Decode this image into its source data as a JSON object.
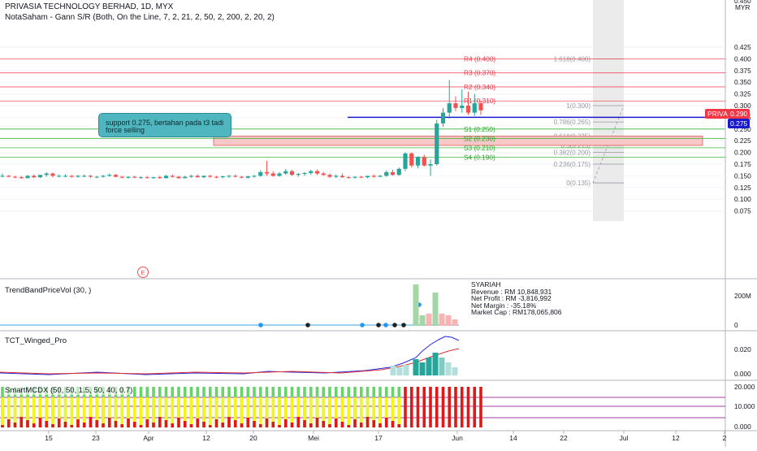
{
  "header": {
    "symbol_line": "PRIVASIA TECHNOLOGY BERHAD, 1D, MYX",
    "indicator_line": "NotaSaham - Gann S/R (Both, On the Line, 7, 2, 21, 2, 50, 2, 200, 2, 20, 2)",
    "currency": "MYR",
    "top_price_partial": "0.450"
  },
  "note": {
    "text": "support 0.275, bertahan pada t3 tadi force selling"
  },
  "price_axis": {
    "ticks": [
      "0.425",
      "0.400",
      "0.375",
      "0.350",
      "0.325",
      "0.300",
      "0.275",
      "0.250",
      "0.225",
      "0.200",
      "0.175",
      "0.150",
      "0.125",
      "0.100",
      "0.075"
    ],
    "last_tag": {
      "label": "PRIVA",
      "value": "0.290",
      "color": "#f23645"
    },
    "line_tag": {
      "value": "0.275",
      "color": "#1a1acc"
    }
  },
  "time_axis": {
    "labels": [
      "15",
      "23",
      "Apr",
      "12",
      "20",
      "Mei",
      "17",
      "Jun",
      "14",
      "22",
      "Jul",
      "12",
      "2"
    ]
  },
  "sr_levels": [
    {
      "label": "R4 (0.400)",
      "price": 0.4,
      "color": "#f23645"
    },
    {
      "label": "R3 (0.370)",
      "price": 0.37,
      "color": "#f23645"
    },
    {
      "label": "R2 (0.340)",
      "price": 0.34,
      "color": "#f23645"
    },
    {
      "label": "R1 (0.310)",
      "price": 0.31,
      "color": "#f23645"
    },
    {
      "label": "S1 (0.250)",
      "price": 0.25,
      "color": "#22ab22"
    },
    {
      "label": "S2 (0.230)",
      "price": 0.23,
      "color": "#22ab22"
    },
    {
      "label": "S3 (0.210)",
      "price": 0.21,
      "color": "#22ab22"
    },
    {
      "label": "S4 (0.190)",
      "price": 0.19,
      "color": "#22ab22"
    }
  ],
  "fib_levels": [
    {
      "label": "1.618(0.400)",
      "price": 0.4
    },
    {
      "label": "1(0.300)",
      "price": 0.3
    },
    {
      "label": "0.786(0.265)",
      "price": 0.265
    },
    {
      "label": "0.618(0.235)",
      "price": 0.235
    },
    {
      "label": "0.5(0.215)",
      "price": 0.215
    },
    {
      "label": "0.382(0.200)",
      "price": 0.2
    },
    {
      "label": "0.236(0.175)",
      "price": 0.175
    },
    {
      "label": "0(0.135)",
      "price": 0.135
    }
  ],
  "earnings_marker": "E",
  "indicators": {
    "trendband": {
      "label": "TrendBandPriceVol (30, )",
      "axis": [
        "200M",
        "0"
      ],
      "info_lines": [
        "SYARIAH",
        "Revenue : RM 10,848,931",
        "Net Profit : RM -3,816,992",
        "Net Margin : -35.18%",
        "Market Cap : RM178,065,806"
      ]
    },
    "winged": {
      "label": "TCT_Winged_Pro",
      "axis": [
        "0.020",
        "0.000"
      ]
    },
    "smartmcdx": {
      "label": "SmartMCDX (50, 50, 1.5, 50, 40, 0.7)",
      "axis": [
        "20.000",
        "10.000",
        "0.000"
      ]
    }
  },
  "colors": {
    "up": "#26a69a",
    "down": "#ef5350",
    "support_line": "#1a1acc",
    "zone_fill": "#f8c8c8"
  },
  "chart_data": {
    "type": "candlestick",
    "currency": "MYR",
    "y_range": [
      0.06,
      0.46
    ],
    "series_note": "daily OHLC (approx.)",
    "candles": [
      [
        0.15,
        0.155,
        0.147,
        0.15
      ],
      [
        0.15,
        0.152,
        0.147,
        0.148
      ],
      [
        0.148,
        0.15,
        0.145,
        0.147
      ],
      [
        0.147,
        0.15,
        0.144,
        0.145
      ],
      [
        0.145,
        0.152,
        0.145,
        0.15
      ],
      [
        0.15,
        0.153,
        0.145,
        0.147
      ],
      [
        0.147,
        0.152,
        0.145,
        0.152
      ],
      [
        0.152,
        0.158,
        0.148,
        0.155
      ],
      [
        0.155,
        0.157,
        0.147,
        0.15
      ],
      [
        0.15,
        0.153,
        0.147,
        0.15
      ],
      [
        0.15,
        0.153,
        0.147,
        0.15
      ],
      [
        0.15,
        0.152,
        0.146,
        0.148
      ],
      [
        0.148,
        0.152,
        0.146,
        0.15
      ],
      [
        0.15,
        0.153,
        0.147,
        0.15
      ],
      [
        0.15,
        0.152,
        0.146,
        0.148
      ],
      [
        0.148,
        0.15,
        0.145,
        0.148
      ],
      [
        0.148,
        0.152,
        0.146,
        0.15
      ],
      [
        0.15,
        0.155,
        0.148,
        0.152
      ],
      [
        0.152,
        0.154,
        0.147,
        0.148
      ],
      [
        0.148,
        0.15,
        0.145,
        0.146
      ],
      [
        0.146,
        0.149,
        0.144,
        0.148
      ],
      [
        0.148,
        0.15,
        0.145,
        0.146
      ],
      [
        0.146,
        0.149,
        0.144,
        0.147
      ],
      [
        0.147,
        0.15,
        0.145,
        0.145
      ],
      [
        0.145,
        0.148,
        0.144,
        0.147
      ],
      [
        0.147,
        0.15,
        0.144,
        0.145
      ],
      [
        0.145,
        0.152,
        0.145,
        0.15
      ],
      [
        0.15,
        0.153,
        0.146,
        0.148
      ],
      [
        0.148,
        0.15,
        0.144,
        0.145
      ],
      [
        0.145,
        0.15,
        0.145,
        0.148
      ],
      [
        0.148,
        0.152,
        0.146,
        0.15
      ],
      [
        0.15,
        0.153,
        0.146,
        0.147
      ],
      [
        0.147,
        0.151,
        0.145,
        0.15
      ],
      [
        0.15,
        0.152,
        0.146,
        0.148
      ],
      [
        0.148,
        0.15,
        0.145,
        0.147
      ],
      [
        0.147,
        0.15,
        0.145,
        0.149
      ],
      [
        0.149,
        0.152,
        0.146,
        0.15
      ],
      [
        0.15,
        0.153,
        0.147,
        0.148
      ],
      [
        0.148,
        0.15,
        0.145,
        0.146
      ],
      [
        0.146,
        0.15,
        0.144,
        0.149
      ],
      [
        0.149,
        0.152,
        0.146,
        0.15
      ],
      [
        0.15,
        0.162,
        0.148,
        0.158
      ],
      [
        0.158,
        0.182,
        0.15,
        0.155
      ],
      [
        0.155,
        0.16,
        0.148,
        0.15
      ],
      [
        0.15,
        0.158,
        0.148,
        0.155
      ],
      [
        0.155,
        0.165,
        0.152,
        0.16
      ],
      [
        0.16,
        0.163,
        0.15,
        0.152
      ],
      [
        0.152,
        0.156,
        0.148,
        0.154
      ],
      [
        0.154,
        0.158,
        0.15,
        0.156
      ],
      [
        0.156,
        0.163,
        0.152,
        0.16
      ],
      [
        0.16,
        0.163,
        0.152,
        0.155
      ],
      [
        0.155,
        0.158,
        0.15,
        0.152
      ],
      [
        0.152,
        0.155,
        0.145,
        0.148
      ],
      [
        0.148,
        0.153,
        0.145,
        0.15
      ],
      [
        0.15,
        0.155,
        0.146,
        0.147
      ],
      [
        0.147,
        0.15,
        0.144,
        0.146
      ],
      [
        0.146,
        0.149,
        0.144,
        0.148
      ],
      [
        0.148,
        0.15,
        0.145,
        0.147
      ],
      [
        0.147,
        0.15,
        0.145,
        0.15
      ],
      [
        0.15,
        0.153,
        0.146,
        0.148
      ],
      [
        0.148,
        0.152,
        0.147,
        0.15
      ],
      [
        0.15,
        0.162,
        0.148,
        0.158
      ],
      [
        0.158,
        0.163,
        0.15,
        0.152
      ],
      [
        0.152,
        0.168,
        0.15,
        0.165
      ],
      [
        0.165,
        0.2,
        0.16,
        0.198
      ],
      [
        0.198,
        0.2,
        0.168,
        0.172
      ],
      [
        0.172,
        0.192,
        0.166,
        0.19
      ],
      [
        0.19,
        0.195,
        0.17,
        0.172
      ],
      [
        0.172,
        0.185,
        0.15,
        0.175
      ],
      [
        0.175,
        0.27,
        0.172,
        0.262
      ],
      [
        0.262,
        0.295,
        0.255,
        0.285
      ],
      [
        0.285,
        0.355,
        0.272,
        0.305
      ],
      [
        0.305,
        0.32,
        0.288,
        0.295
      ],
      [
        0.295,
        0.335,
        0.285,
        0.3
      ],
      [
        0.3,
        0.33,
        0.28,
        0.285
      ],
      [
        0.285,
        0.325,
        0.278,
        0.305
      ],
      [
        0.305,
        0.31,
        0.28,
        0.29
      ]
    ]
  }
}
